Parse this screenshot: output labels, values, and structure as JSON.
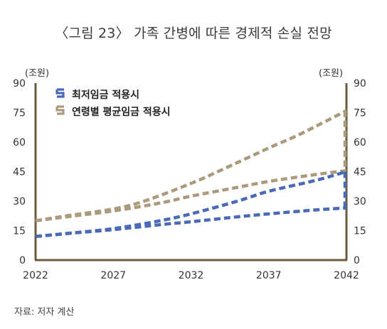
{
  "title": "〈그림 23〉 가족 간병에 따른 경제적 손실 전망",
  "unit_left": "(조원)",
  "unit_right": "(조원)",
  "source": "자료: 저자 계산",
  "colors": {
    "blue": "#4a69b6",
    "tan": "#ac9a7d",
    "axis": "#6b5a3c"
  },
  "legend": {
    "min_wage": "최저임금 적용시",
    "avg_wage": "연령별 평균임금 적용시"
  },
  "chart_data": {
    "type": "line",
    "x": [
      2022,
      2027,
      2032,
      2037,
      2042
    ],
    "xticks": [
      "2022",
      "2027",
      "2032",
      "2037",
      "2042"
    ],
    "yticks": [
      "0",
      "15",
      "30",
      "45",
      "60",
      "75",
      "90"
    ],
    "ylim": [
      0,
      90
    ],
    "xlim": [
      2022,
      2042
    ],
    "series": [
      {
        "name": "최저임금 적용시",
        "color": "blue",
        "style": "dashed",
        "lines": [
          [
            [
              2022,
              12
            ],
            [
              2024,
              13.5
            ],
            [
              2027,
              16
            ],
            [
              2030,
              20
            ],
            [
              2032,
              23.5
            ],
            [
              2035,
              30
            ],
            [
              2037,
              35
            ],
            [
              2040,
              40.5
            ],
            [
              2042,
              45
            ]
          ],
          [
            [
              2022,
              12
            ],
            [
              2024,
              13.5
            ],
            [
              2027,
              15.5
            ],
            [
              2030,
              18
            ],
            [
              2032,
              19.5
            ],
            [
              2035,
              22
            ],
            [
              2037,
              23.5
            ],
            [
              2040,
              25.5
            ],
            [
              2042,
              26.5
            ]
          ]
        ]
      },
      {
        "name": "연령별 평균임금 적용시",
        "color": "tan",
        "style": "dashed",
        "lines": [
          [
            [
              2022,
              20
            ],
            [
              2024,
              22.5
            ],
            [
              2027,
              26
            ],
            [
              2029,
              30
            ],
            [
              2032,
              39
            ],
            [
              2034,
              46
            ],
            [
              2037,
              57
            ],
            [
              2039,
              64
            ],
            [
              2042,
              76
            ]
          ],
          [
            [
              2022,
              20
            ],
            [
              2024,
              22
            ],
            [
              2027,
              25
            ],
            [
              2030,
              29
            ],
            [
              2032,
              32.5
            ],
            [
              2035,
              37
            ],
            [
              2037,
              40
            ],
            [
              2040,
              43.5
            ],
            [
              2042,
              45.5
            ]
          ]
        ]
      }
    ],
    "grid": false,
    "legend_position": "top-left"
  }
}
